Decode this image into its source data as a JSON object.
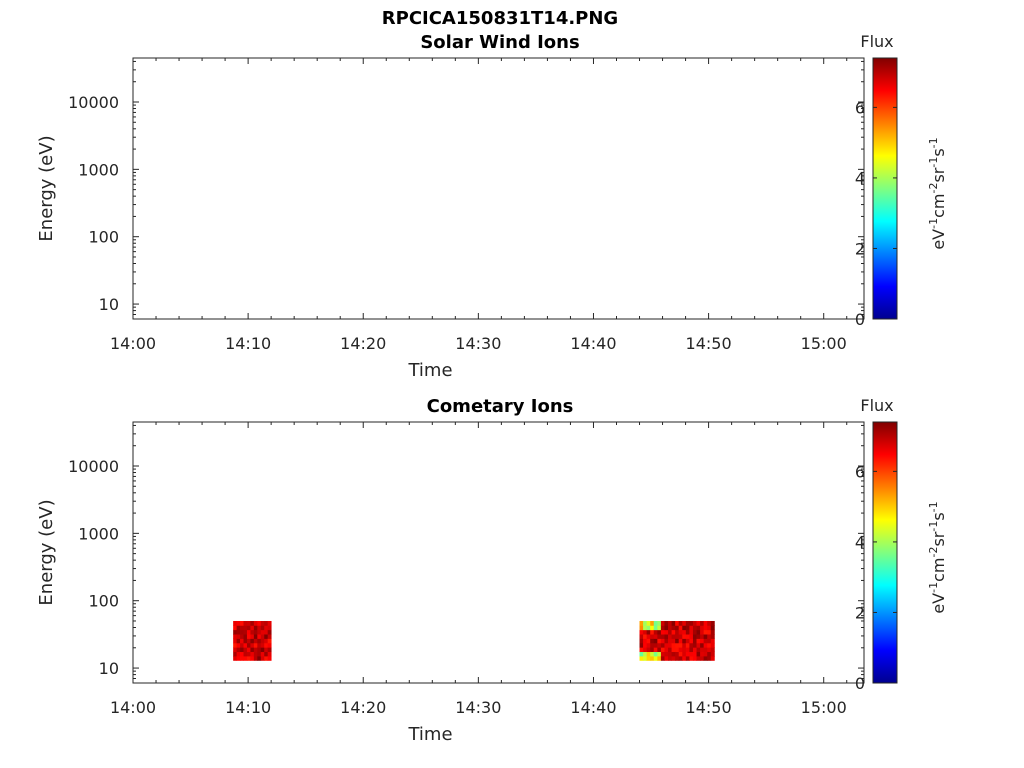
{
  "figure_title": "RPCICA150831T14.PNG",
  "colorbar": {
    "label": "Flux",
    "min": 0,
    "max": 7.4,
    "ticks": [
      "0",
      "2",
      "4",
      "6"
    ],
    "tick_values": [
      0,
      2,
      4,
      6
    ],
    "unit_parts": [
      "eV",
      "-1",
      "cm",
      "-2",
      "sr",
      "-1",
      "s",
      "-1"
    ],
    "colormap": "jet"
  },
  "chart_data": [
    {
      "type": "heatmap",
      "title": "Solar Wind Ions",
      "xlabel": "Time",
      "ylabel": "Energy (eV)",
      "x_ticks": [
        "14:00",
        "14:10",
        "14:20",
        "14:30",
        "14:40",
        "14:50",
        "15:00"
      ],
      "x_tick_minutes": [
        0,
        10,
        20,
        30,
        40,
        50,
        60
      ],
      "xlim_minutes": [
        0,
        63.5
      ],
      "y_ticks": [
        "10",
        "100",
        "1000",
        "10000"
      ],
      "y_tick_values": [
        10,
        100,
        1000,
        10000
      ],
      "ylim": [
        6,
        45000
      ],
      "y_scale": "log",
      "patches": []
    },
    {
      "type": "heatmap",
      "title": "Cometary Ions",
      "xlabel": "Time",
      "ylabel": "Energy (eV)",
      "x_ticks": [
        "14:00",
        "14:10",
        "14:20",
        "14:30",
        "14:40",
        "14:50",
        "15:00"
      ],
      "x_tick_minutes": [
        0,
        10,
        20,
        30,
        40,
        50,
        60
      ],
      "xlim_minutes": [
        0,
        63.5
      ],
      "y_ticks": [
        "10",
        "100",
        "1000",
        "10000"
      ],
      "y_tick_values": [
        10,
        100,
        1000,
        10000
      ],
      "ylim": [
        6,
        45000
      ],
      "y_scale": "log",
      "patches": [
        {
          "t_start": 8.7,
          "t_end": 12.0,
          "e_min": 13,
          "e_max": 50,
          "flux_min": 6.3,
          "flux_max": 7.4
        },
        {
          "t_start": 44.0,
          "t_end": 50.5,
          "e_min": 13,
          "e_max": 50,
          "flux_min": 3.3,
          "flux_max": 7.4
        }
      ]
    }
  ]
}
